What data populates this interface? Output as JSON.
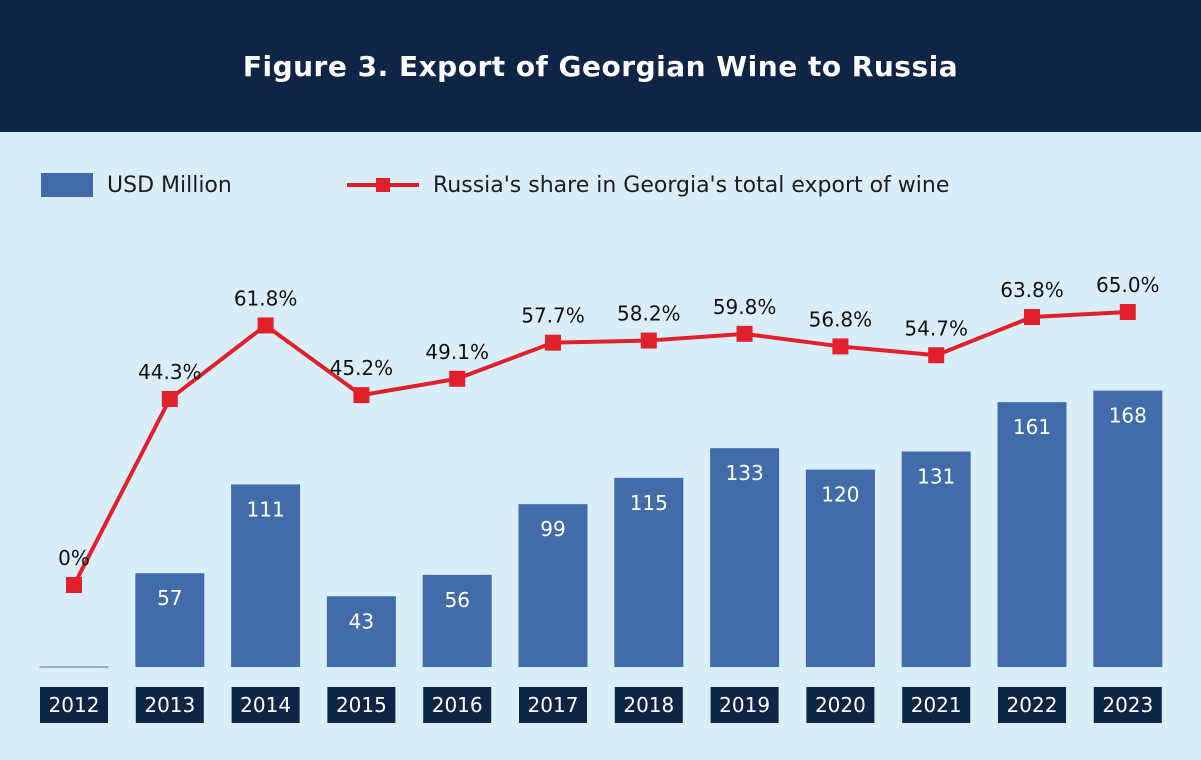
{
  "header": {
    "title": "Figure 3. Export of Georgian Wine to Russia"
  },
  "legend": {
    "bar_label": "USD Million",
    "line_label": "Russia's share in Georgia's total export of wine"
  },
  "colors": {
    "bar": "#426ca9",
    "line": "#e0212b",
    "year_box": "#0f2545",
    "background": "#daeef9"
  },
  "chart_data": {
    "type": "bar",
    "categories": [
      "2012",
      "2013",
      "2014",
      "2015",
      "2016",
      "2017",
      "2018",
      "2019",
      "2020",
      "2021",
      "2022",
      "2023"
    ],
    "series": [
      {
        "name": "USD Million",
        "type": "bar",
        "values": [
          0,
          57,
          111,
          43,
          56,
          99,
          115,
          133,
          120,
          131,
          161,
          168
        ],
        "labels": [
          "",
          "57",
          "111",
          "43",
          "56",
          "99",
          "115",
          "133",
          "120",
          "131",
          "161",
          "168"
        ]
      },
      {
        "name": "Russia's share in Georgia's total export of wine",
        "type": "line",
        "values": [
          0,
          44.3,
          61.8,
          45.2,
          49.1,
          57.7,
          58.2,
          59.8,
          56.8,
          54.7,
          63.8,
          65.0
        ],
        "labels": [
          "0%",
          "44.3%",
          "61.8%",
          "45.2%",
          "49.1%",
          "57.7%",
          "58.2%",
          "59.8%",
          "56.8%",
          "54.7%",
          "63.8%",
          "65.0%"
        ]
      }
    ],
    "legend_position": "top-left",
    "grid": false
  }
}
